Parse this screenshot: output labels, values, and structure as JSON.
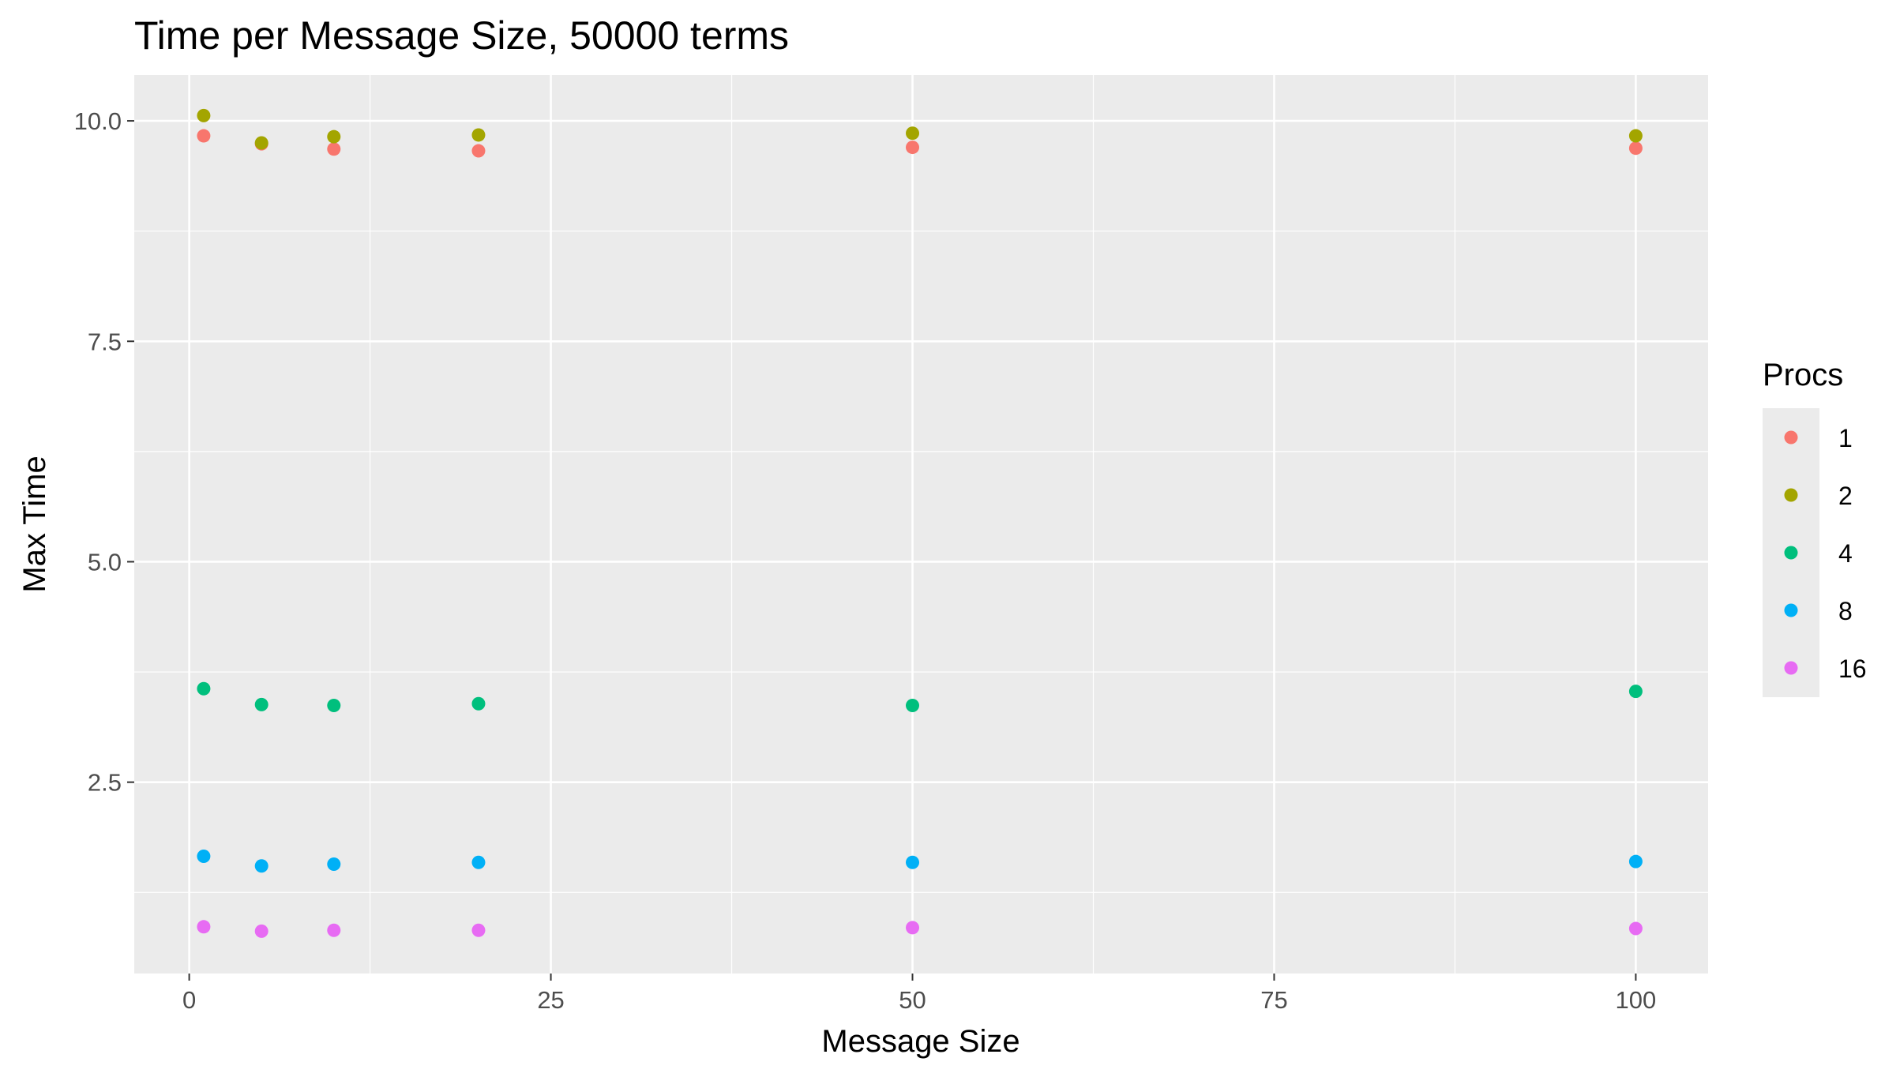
{
  "chart_data": {
    "type": "scatter",
    "title": "Time per Message Size, 50000 terms",
    "xlabel": "Message Size",
    "ylabel": "Max Time",
    "xlim": [
      -3.8,
      105.0
    ],
    "ylim": [
      0.33,
      10.52
    ],
    "x_ticks": [
      0,
      25,
      50,
      75,
      100
    ],
    "x_tick_labels": [
      "0",
      "25",
      "50",
      "75",
      "100"
    ],
    "y_ticks": [
      2.5,
      5.0,
      7.5,
      10.0
    ],
    "y_tick_labels": [
      "2.5",
      "5.0",
      "7.5",
      "10.0"
    ],
    "grid": true,
    "legend": {
      "title": "Procs",
      "position": "right"
    },
    "series": [
      {
        "name": "1",
        "color": "#F8766D",
        "points": [
          [
            1,
            9.83
          ],
          [
            5,
            9.74
          ],
          [
            10,
            9.68
          ],
          [
            20,
            9.66
          ],
          [
            50,
            9.7
          ],
          [
            100,
            9.69
          ]
        ]
      },
      {
        "name": "2",
        "color": "#A3A500",
        "points": [
          [
            1,
            10.06
          ],
          [
            5,
            9.75
          ],
          [
            10,
            9.82
          ],
          [
            20,
            9.84
          ],
          [
            50,
            9.86
          ],
          [
            100,
            9.83
          ]
        ]
      },
      {
        "name": "4",
        "color": "#00BF7D",
        "points": [
          [
            1,
            3.56
          ],
          [
            5,
            3.38
          ],
          [
            10,
            3.37
          ],
          [
            20,
            3.39
          ],
          [
            50,
            3.37
          ],
          [
            100,
            3.53
          ]
        ]
      },
      {
        "name": "8",
        "color": "#00B0F6",
        "points": [
          [
            1,
            1.66
          ],
          [
            5,
            1.55
          ],
          [
            10,
            1.57
          ],
          [
            20,
            1.59
          ],
          [
            50,
            1.59
          ],
          [
            100,
            1.6
          ]
        ]
      },
      {
        "name": "16",
        "color": "#E76BF3",
        "points": [
          [
            1,
            0.86
          ],
          [
            5,
            0.81
          ],
          [
            10,
            0.82
          ],
          [
            20,
            0.82
          ],
          [
            50,
            0.85
          ],
          [
            100,
            0.84
          ]
        ]
      }
    ]
  }
}
